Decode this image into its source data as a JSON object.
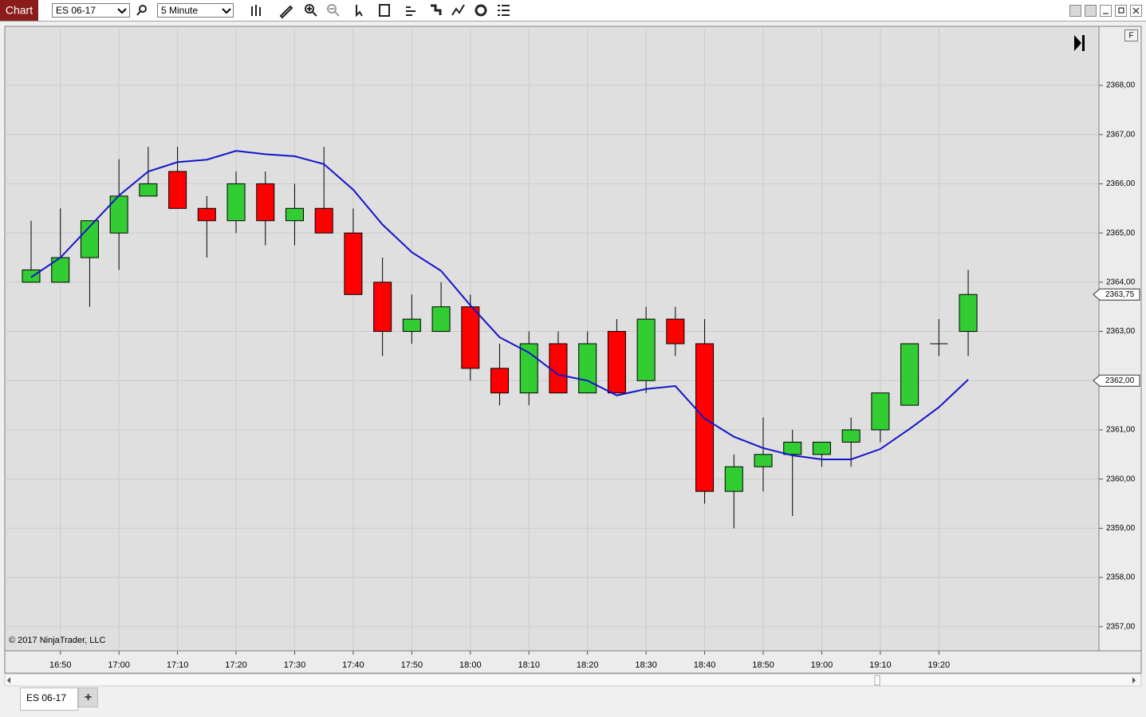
{
  "toolbar": {
    "tab": "Chart",
    "instrument": "ES 06-17",
    "interval": "5 Minute"
  },
  "tabs": {
    "active": "ES 06-17",
    "add": "+"
  },
  "chart_data": {
    "type": "candlestick",
    "copyright": "© 2017 NinjaTrader, LLC",
    "side_button": "F",
    "categories": [
      null,
      "16:50",
      null,
      "17:00",
      null,
      "17:10",
      null,
      "17:20",
      null,
      "17:30",
      null,
      "17:40",
      null,
      "17:50",
      null,
      "18:00",
      null,
      "18:10",
      null,
      "18:20",
      null,
      "18:30",
      null,
      "18:40",
      null,
      "18:50",
      null,
      "19:00",
      null,
      "19:10",
      null,
      "19:20",
      null
    ],
    "open": [
      2364,
      2364,
      2364.5,
      2365,
      2365.75,
      2366.25,
      2365.5,
      2365.25,
      2366,
      2365.25,
      2365.5,
      2365,
      2364,
      2363,
      2363,
      2363.5,
      2362.25,
      2361.75,
      2362.75,
      2361.75,
      2363,
      2362,
      2363.25,
      2362.75,
      2359.75,
      2360.25,
      2360.5,
      2360.5,
      2360.75,
      2361,
      2361.5,
      2362.75,
      2363
    ],
    "high": [
      2365.25,
      2365.5,
      2365.25,
      2366.5,
      2366.75,
      2366.75,
      2365.75,
      2366.25,
      2366.25,
      2366,
      2366.75,
      2365.5,
      2364.5,
      2363.75,
      2364,
      2363.75,
      2362.75,
      2363,
      2363,
      2363,
      2363.25,
      2363.5,
      2363.5,
      2363.25,
      2360.5,
      2361.25,
      2361,
      2360.75,
      2361.25,
      2361.75,
      2362.75,
      2363.25,
      2364.25
    ],
    "low": [
      2364,
      2364,
      2363.5,
      2364.25,
      2365.75,
      2365.5,
      2364.5,
      2365,
      2364.75,
      2364.75,
      2365,
      2363.75,
      2362.5,
      2362.75,
      2363,
      2362,
      2361.5,
      2361.5,
      2361.75,
      2361.75,
      2361.75,
      2361.75,
      2362.5,
      2359.5,
      2359,
      2359.75,
      2359.25,
      2360.25,
      2360.25,
      2360.75,
      2361.5,
      2362.5,
      2362.5
    ],
    "close": [
      2364.25,
      2364.5,
      2365.25,
      2365.75,
      2366,
      2365.5,
      2365.25,
      2366,
      2365.25,
      2365.5,
      2365,
      2363.75,
      2363,
      2363.25,
      2363.5,
      2362.25,
      2361.75,
      2362.75,
      2361.75,
      2362.75,
      2361.75,
      2363.25,
      2362.75,
      2359.75,
      2360.25,
      2360.5,
      2360.75,
      2360.75,
      2361,
      2361.75,
      2362.75,
      2362.75,
      2363.75
    ],
    "up_color": "#32cd32",
    "down_color": "#ff0000",
    "overlay": {
      "type": "line",
      "color": "#1414c8",
      "values": [
        2364.1,
        2364.5,
        2365.13,
        2365.76,
        2366.25,
        2366.44,
        2366.49,
        2366.67,
        2366.6,
        2366.56,
        2366.4,
        2365.88,
        2365.17,
        2364.61,
        2364.23,
        2363.53,
        2362.88,
        2362.57,
        2362.12,
        2362,
        2361.7,
        2361.83,
        2361.89,
        2361.23,
        2360.86,
        2360.63,
        2360.48,
        2360.4,
        2360.4,
        2360.61,
        2361.02,
        2361.46,
        2362.02
      ]
    },
    "markers": [
      {
        "value": 2363.75,
        "label": "2363,75"
      },
      {
        "value": 2362,
        "label": "2362,00"
      }
    ],
    "ylim": [
      2356.51,
      2369.2
    ],
    "yticks": [
      {
        "value": 2357,
        "label": "2357,00"
      },
      {
        "value": 2358,
        "label": "2358,00"
      },
      {
        "value": 2359,
        "label": "2359,00"
      },
      {
        "value": 2360,
        "label": "2360,00"
      },
      {
        "value": 2361,
        "label": "2361,00"
      },
      {
        "value": 2362,
        "label": "2362,00"
      },
      {
        "value": 2363,
        "label": "2363,00"
      },
      {
        "value": 2364,
        "label": "2364,00"
      },
      {
        "value": 2365,
        "label": "2365,00"
      },
      {
        "value": 2366,
        "label": "2366,00"
      },
      {
        "value": 2367,
        "label": "2367,00"
      },
      {
        "value": 2368,
        "label": "2368,00"
      }
    ],
    "grid": true
  }
}
